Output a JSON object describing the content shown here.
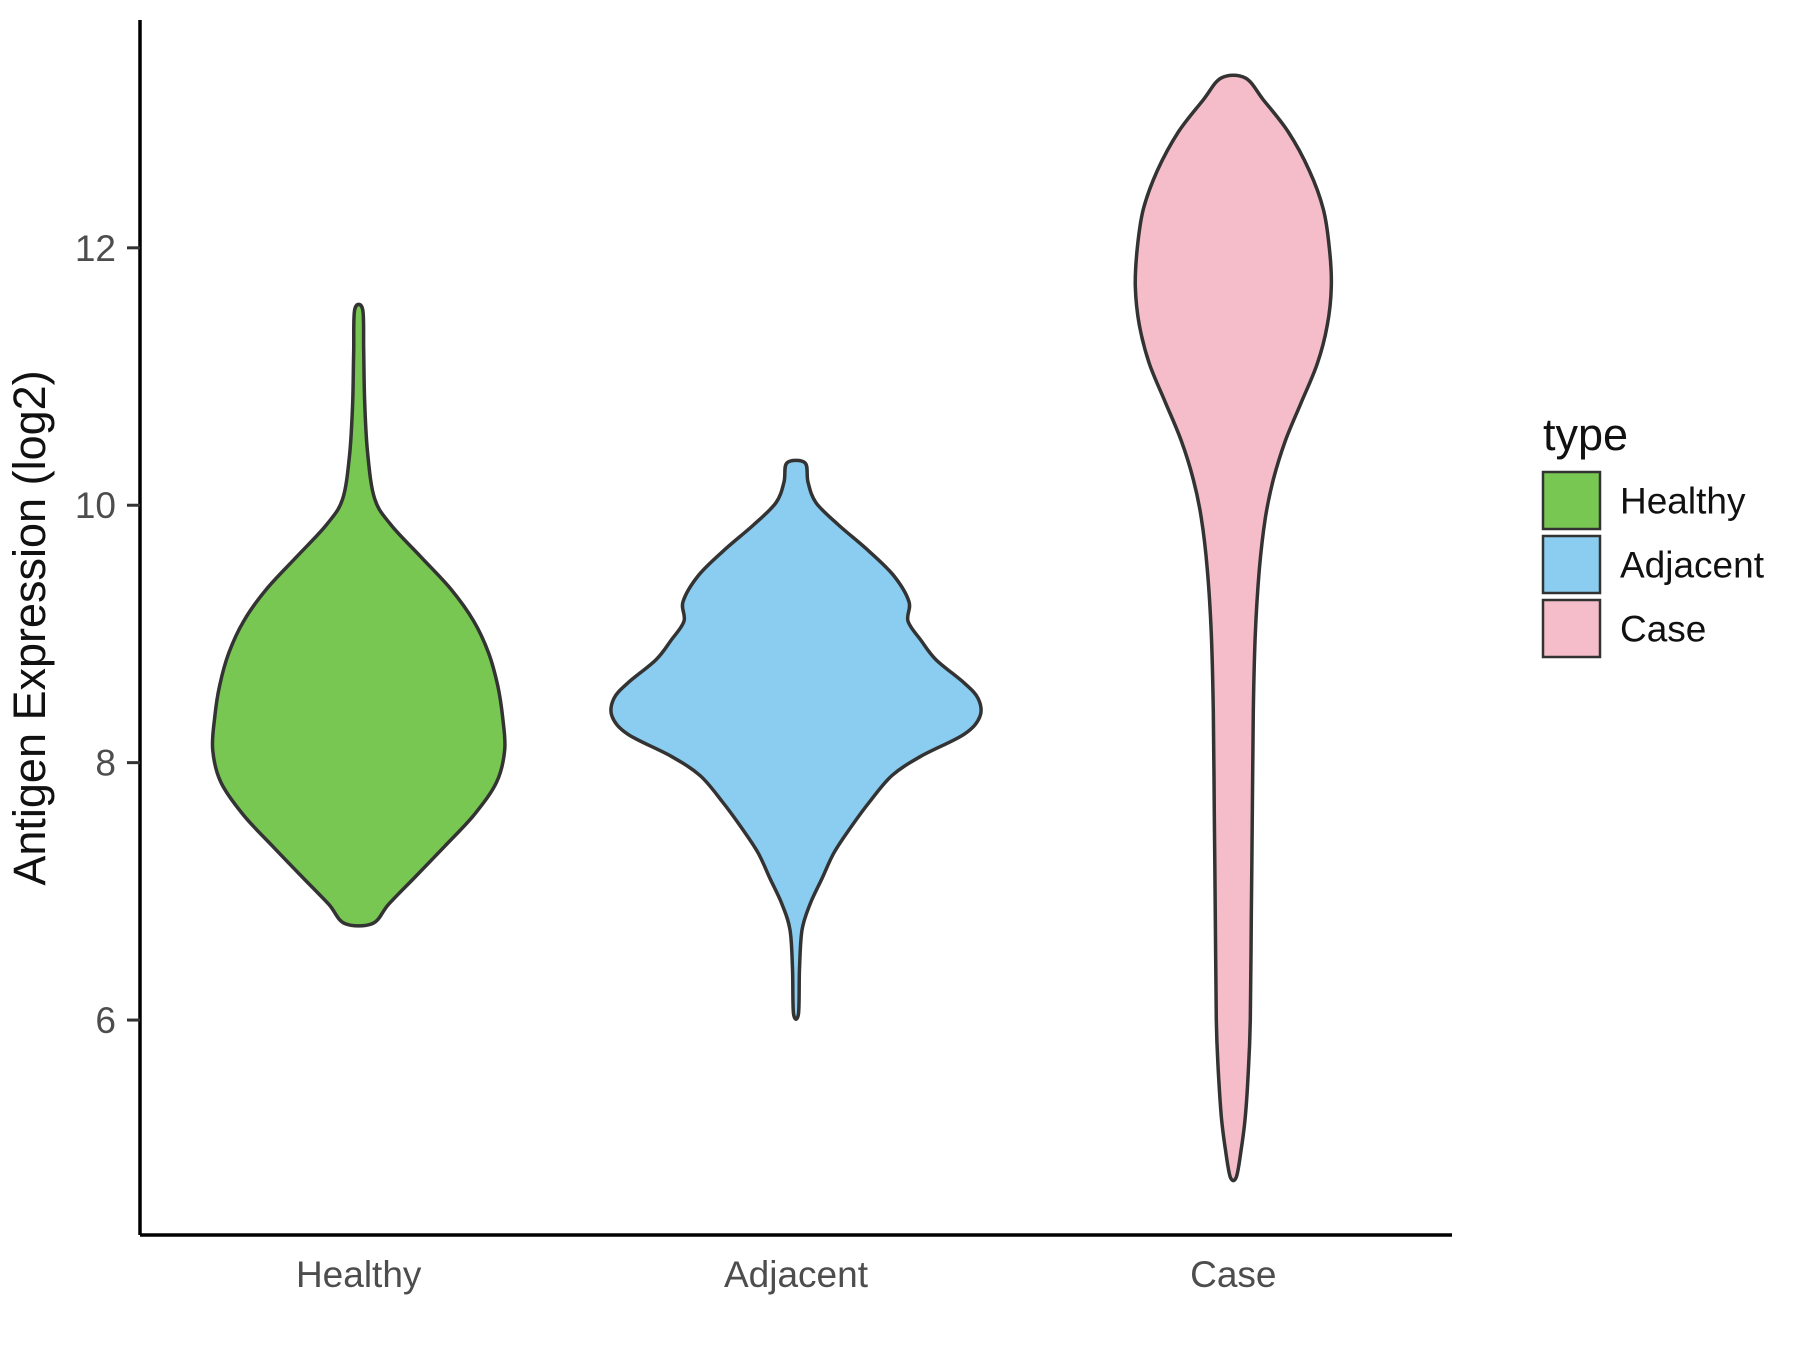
{
  "figure": {
    "background": "#ffffff",
    "axis_color": "#000000",
    "outline_color": "#333333",
    "tick_text_color": "#4d4d4d"
  },
  "chart_data": {
    "type": "violin",
    "title": "",
    "xlabel": "",
    "ylabel": "Antigen Expression (log2)",
    "ylim": [
      4.33,
      13.77
    ],
    "yticks": [
      6,
      8,
      10,
      12
    ],
    "categories": [
      "Healthy",
      "Adjacent",
      "Case"
    ],
    "grid": false,
    "legend": {
      "title": "type",
      "position": "right",
      "entries": [
        {
          "label": "Healthy",
          "color": "#79C753"
        },
        {
          "label": "Adjacent",
          "color": "#8BCDF0"
        },
        {
          "label": "Case",
          "color": "#F5BDC9"
        }
      ]
    },
    "series": [
      {
        "name": "Healthy",
        "fill": "#79C753",
        "category": "Healthy",
        "min": 6.72,
        "max": 11.52,
        "peak_value": 8.1,
        "profile": [
          [
            11.52,
            4
          ],
          [
            11.2,
            5
          ],
          [
            10.8,
            6
          ],
          [
            10.4,
            9
          ],
          [
            10.05,
            16
          ],
          [
            9.85,
            32
          ],
          [
            9.6,
            62
          ],
          [
            9.35,
            92
          ],
          [
            9.1,
            115
          ],
          [
            8.85,
            130
          ],
          [
            8.6,
            139
          ],
          [
            8.35,
            144
          ],
          [
            8.1,
            146
          ],
          [
            7.85,
            138
          ],
          [
            7.6,
            116
          ],
          [
            7.35,
            86
          ],
          [
            7.1,
            55
          ],
          [
            6.9,
            30
          ],
          [
            6.75,
            14
          ]
        ]
      },
      {
        "name": "Adjacent",
        "fill": "#8BCDF0",
        "category": "Adjacent",
        "min": 6.05,
        "max": 10.33,
        "peak_value": 8.45,
        "profile": [
          [
            10.33,
            9
          ],
          [
            10.18,
            12
          ],
          [
            10.02,
            20
          ],
          [
            9.85,
            42
          ],
          [
            9.65,
            72
          ],
          [
            9.45,
            98
          ],
          [
            9.25,
            113
          ],
          [
            9.1,
            112
          ],
          [
            8.95,
            125
          ],
          [
            8.8,
            140
          ],
          [
            8.62,
            168
          ],
          [
            8.5,
            182
          ],
          [
            8.36,
            184
          ],
          [
            8.22,
            168
          ],
          [
            8.05,
            125
          ],
          [
            7.9,
            96
          ],
          [
            7.7,
            74
          ],
          [
            7.5,
            55
          ],
          [
            7.3,
            38
          ],
          [
            7.1,
            26
          ],
          [
            6.9,
            14
          ],
          [
            6.7,
            6
          ],
          [
            6.4,
            3.5
          ],
          [
            6.05,
            2.5
          ]
        ]
      },
      {
        "name": "Case",
        "fill": "#F5BDC9",
        "category": "Case",
        "min": 4.78,
        "max": 13.32,
        "peak_value": 11.7,
        "profile": [
          [
            13.32,
            12
          ],
          [
            13.15,
            30
          ],
          [
            12.9,
            55
          ],
          [
            12.6,
            76
          ],
          [
            12.3,
            90
          ],
          [
            12.0,
            96
          ],
          [
            11.7,
            98
          ],
          [
            11.4,
            94
          ],
          [
            11.1,
            84
          ],
          [
            10.8,
            68
          ],
          [
            10.5,
            52
          ],
          [
            10.2,
            40
          ],
          [
            9.9,
            32
          ],
          [
            9.5,
            26
          ],
          [
            9.0,
            22
          ],
          [
            8.4,
            20
          ],
          [
            7.6,
            19
          ],
          [
            6.8,
            18
          ],
          [
            6.0,
            17
          ],
          [
            5.6,
            15
          ],
          [
            5.25,
            12
          ],
          [
            5.0,
            8
          ],
          [
            4.78,
            3
          ]
        ]
      }
    ]
  }
}
